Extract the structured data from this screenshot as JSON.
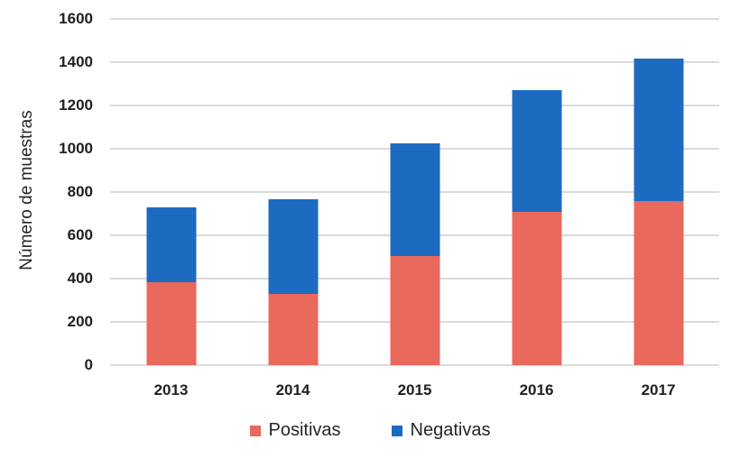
{
  "chart_data": {
    "type": "bar",
    "stacked": true,
    "title": "",
    "xlabel": "",
    "ylabel": "Número de muestras",
    "categories": [
      "2013",
      "2014",
      "2015",
      "2016",
      "2017"
    ],
    "series": [
      {
        "name": "Positivas",
        "color": "#E9695C",
        "values": [
          385,
          330,
          505,
          710,
          760
        ]
      },
      {
        "name": "Negativas",
        "color": "#1C6BC1",
        "values": [
          345,
          435,
          520,
          560,
          655
        ]
      }
    ],
    "ylim": [
      0,
      1600
    ],
    "yticks": [
      0,
      200,
      400,
      600,
      800,
      1000,
      1200,
      1400,
      1600
    ],
    "grid": true,
    "legend_position": "bottom"
  }
}
